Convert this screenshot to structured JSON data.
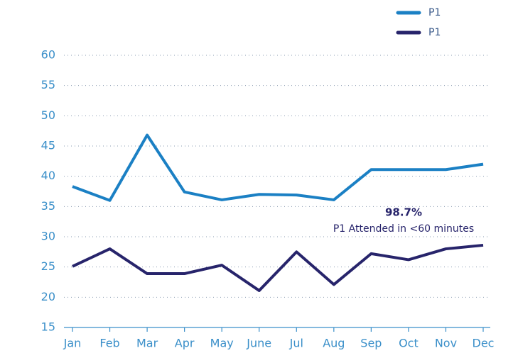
{
  "chart_data": {
    "type": "line",
    "categories": [
      "Jan",
      "Feb",
      "Mar",
      "Apr",
      "May",
      "June",
      "Jul",
      "Aug",
      "Sep",
      "Oct",
      "Nov",
      "Dec"
    ],
    "series": [
      {
        "name": "P1",
        "color": "#1b80c4",
        "values": [
          38.3,
          36.0,
          46.8,
          37.4,
          36.1,
          37.0,
          36.9,
          36.1,
          41.1,
          41.1,
          41.1,
          42.0
        ]
      },
      {
        "name": "P1",
        "color": "#27246b",
        "values": [
          25.1,
          28.0,
          23.9,
          23.9,
          25.3,
          21.1,
          27.5,
          22.1,
          27.2,
          26.2,
          28.0,
          28.6
        ]
      }
    ],
    "ylim": [
      15,
      60
    ],
    "yticks": [
      15,
      20,
      25,
      30,
      35,
      40,
      45,
      50,
      55,
      60
    ],
    "grid": true,
    "annotations": [
      "98.7%",
      "P1 Attended in <60 minutes"
    ]
  }
}
